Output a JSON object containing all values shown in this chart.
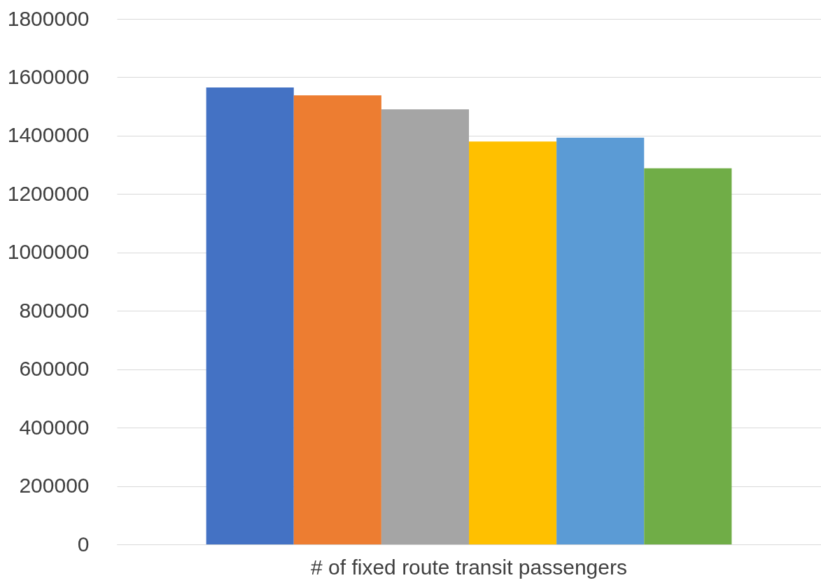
{
  "chart_data": {
    "type": "bar",
    "categories": [
      "# of fixed route transit passengers"
    ],
    "series": [
      {
        "color": "#4472c4",
        "values": [
          1565000
        ]
      },
      {
        "color": "#ed7d31",
        "values": [
          1538000
        ]
      },
      {
        "color": "#a5a5a5",
        "values": [
          1490000
        ]
      },
      {
        "color": "#ffc000",
        "values": [
          1380000
        ]
      },
      {
        "color": "#5b9bd5",
        "values": [
          1393000
        ]
      },
      {
        "color": "#70ad47",
        "values": [
          1288000
        ]
      }
    ],
    "ylim": [
      0,
      1800000
    ],
    "yticks": [
      0,
      200000,
      400000,
      600000,
      800000,
      1000000,
      1200000,
      1400000,
      1600000,
      1800000
    ],
    "grid": "y",
    "legend": false
  }
}
